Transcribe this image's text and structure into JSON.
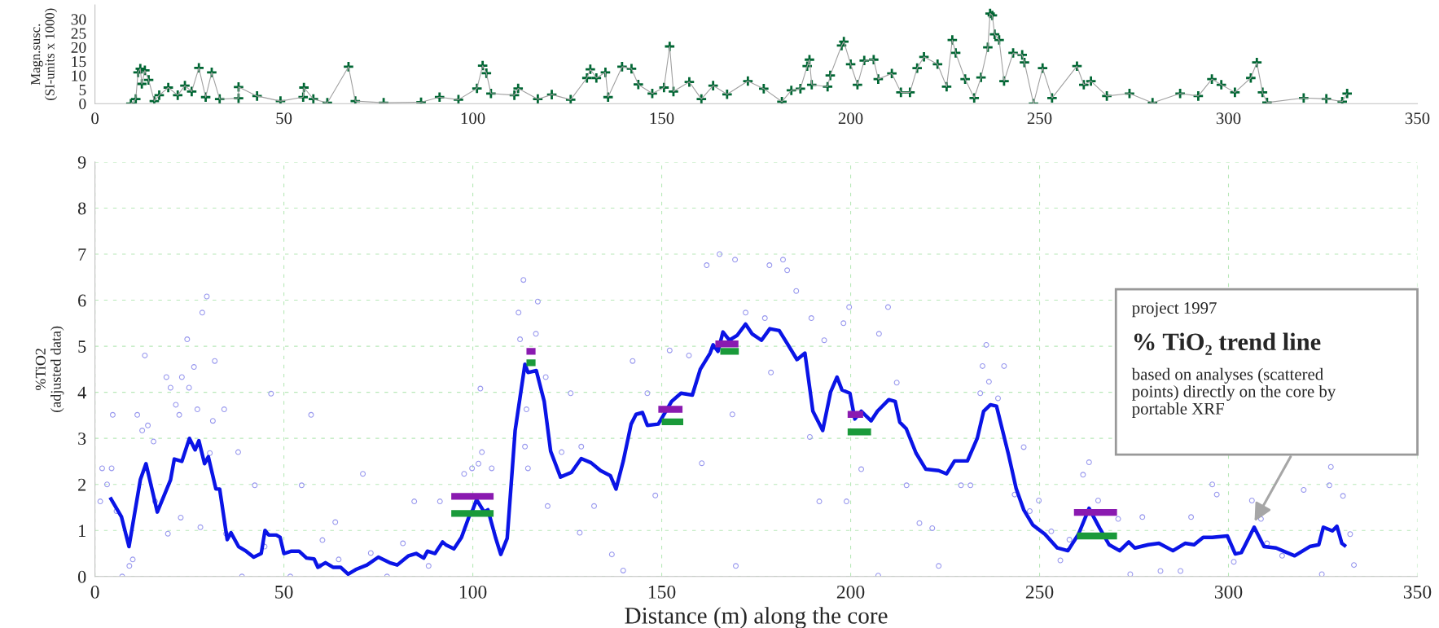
{
  "chart_data": [
    {
      "type": "scatter",
      "ylabel": "Magn.susc.\n(SI-units x 1000)",
      "xlim": [
        0,
        350
      ],
      "xticks": [
        0,
        50,
        100,
        150,
        200,
        250,
        300,
        350
      ],
      "ylim": [
        0,
        35
      ],
      "yticks": [
        0,
        5,
        10,
        15,
        20,
        25,
        30
      ],
      "grid": false,
      "series": [
        {
          "type": "line",
          "color": "#a0a0a0",
          "marker": "none",
          "x": [
            9.5,
            10.8,
            11.4,
            12,
            12.4,
            13.2,
            14.2,
            15.7,
            17,
            19.4,
            21.9,
            23.8,
            25.6,
            27.5,
            29.3,
            30.9,
            33,
            38,
            38,
            42.9,
            49.1,
            55.1,
            55.3,
            57.8,
            61.5,
            67.1,
            68.9,
            76.4,
            86.3,
            91.2,
            96.2,
            101.1,
            102.6,
            103.6,
            104.8,
            111,
            112,
            117.2,
            120.9,
            125.9,
            130.2,
            131.1,
            132.7,
            135.1,
            135.8,
            139.5,
            142,
            143.8,
            147.5,
            150.6,
            152.1,
            153.1,
            157.3,
            160.5,
            163.6,
            167.3,
            172.8,
            177,
            181.8,
            184.3,
            186.7,
            188.5,
            189.1,
            189.7,
            193.9,
            194.6,
            197.6,
            198.2,
            200,
            201.8,
            203.6,
            206.1,
            207.3,
            210.9,
            213.3,
            215.7,
            217.6,
            219.4,
            223,
            225.4,
            226.9,
            227.8,
            230.3,
            232.7,
            234.5,
            236.3,
            236.9,
            237.5,
            238.1,
            239.3,
            240.6,
            243,
            245.4,
            246,
            248.4,
            250.8,
            253.3,
            259.9,
            261.7,
            263.6,
            267.8,
            273.8,
            279.9,
            287.2,
            292,
            295.6,
            298.1,
            301.7,
            305.9,
            307.5,
            309,
            310.2,
            319.9,
            325.9,
            330.1,
            331.4
          ],
          "values": [
            0,
            1.6,
            11.1,
            12.4,
            7,
            11.8,
            8.4,
            0.9,
            3,
            5.7,
            3,
            6.4,
            4.3,
            12.7,
            2.3,
            11.1,
            1.6,
            1.9,
            5.9,
            2.7,
            0.9,
            2.3,
            5.7,
            1.6,
            0.3,
            13.1,
            0.9,
            0.3,
            0.5,
            2.3,
            1.4,
            5.4,
            13.5,
            10.8,
            3.6,
            3,
            5.4,
            1.6,
            3.2,
            1.4,
            9.1,
            12.2,
            9.1,
            11.1,
            2.3,
            13.1,
            12.4,
            6.8,
            3.6,
            5.7,
            20.3,
            4.3,
            7.7,
            1.6,
            6.4,
            3.3,
            8,
            5.3,
            0.7,
            4.7,
            5.3,
            13.3,
            15.6,
            6.7,
            6,
            10,
            20.6,
            22,
            14,
            6.7,
            15.3,
            15.6,
            8.7,
            10.7,
            4,
            4,
            12.6,
            16.6,
            14,
            6,
            22.6,
            18,
            8.7,
            2,
            9.3,
            20,
            32,
            31.3,
            24.6,
            22.6,
            8,
            18,
            17.3,
            14.6,
            0,
            12.6,
            2,
            13.3,
            6.7,
            8,
            2.7,
            3.6,
            0.3,
            3.6,
            2.7,
            8.7,
            6.7,
            4,
            9.1,
            14.6,
            4,
            0.4,
            2,
            1.7,
            0.7,
            3.6
          ]
        },
        {
          "color": "#006633",
          "marker": "cross",
          "x": [
            9.5,
            10.8,
            11.4,
            12,
            12.4,
            13.2,
            14.2,
            15.7,
            17,
            19.4,
            21.9,
            23.8,
            25.6,
            27.5,
            29.3,
            30.9,
            33,
            38,
            38,
            42.9,
            49.1,
            55.1,
            55.3,
            57.8,
            61.5,
            67.1,
            68.9,
            76.4,
            86.3,
            91.2,
            96.2,
            101.1,
            102.6,
            103.6,
            104.8,
            111,
            112,
            117.2,
            120.9,
            125.9,
            130.2,
            131.1,
            132.7,
            135.1,
            135.8,
            139.5,
            142,
            143.8,
            147.5,
            150.6,
            152.1,
            153.1,
            157.3,
            160.5,
            163.6,
            167.3,
            172.8,
            177,
            181.8,
            184.3,
            186.7,
            188.5,
            189.1,
            189.7,
            193.9,
            194.6,
            197.6,
            198.2,
            200,
            201.8,
            203.6,
            206.1,
            207.3,
            210.9,
            213.3,
            215.7,
            217.6,
            219.4,
            223,
            225.4,
            226.9,
            227.8,
            230.3,
            232.7,
            234.5,
            236.3,
            236.9,
            237.5,
            238.1,
            239.3,
            240.6,
            243,
            245.4,
            246,
            248.4,
            250.8,
            253.3,
            259.9,
            261.7,
            263.6,
            267.8,
            273.8,
            279.9,
            287.2,
            292,
            295.6,
            298.1,
            301.7,
            305.9,
            307.5,
            309,
            310.2,
            319.9,
            325.9,
            330.1,
            331.4
          ],
          "values": [
            0,
            1.6,
            11.1,
            12.4,
            7,
            11.8,
            8.4,
            0.9,
            3,
            5.7,
            3,
            6.4,
            4.3,
            12.7,
            2.3,
            11.1,
            1.6,
            1.9,
            5.9,
            2.7,
            0.9,
            2.3,
            5.7,
            1.6,
            0.3,
            13.1,
            0.9,
            0.3,
            0.5,
            2.3,
            1.4,
            5.4,
            13.5,
            10.8,
            3.6,
            3,
            5.4,
            1.6,
            3.2,
            1.4,
            9.1,
            12.2,
            9.1,
            11.1,
            2.3,
            13.1,
            12.4,
            6.8,
            3.6,
            5.7,
            20.3,
            4.3,
            7.7,
            1.6,
            6.4,
            3.3,
            8,
            5.3,
            0.7,
            4.7,
            5.3,
            13.3,
            15.6,
            6.7,
            6,
            10,
            20.6,
            22,
            14,
            6.7,
            15.3,
            15.6,
            8.7,
            10.7,
            4,
            4,
            12.6,
            16.6,
            14,
            6,
            22.6,
            18,
            8.7,
            2,
            9.3,
            20,
            32,
            31.3,
            24.6,
            22.6,
            8,
            18,
            17.3,
            14.6,
            0,
            12.6,
            2,
            13.3,
            6.7,
            8,
            2.7,
            3.6,
            0.3,
            3.6,
            2.7,
            8.7,
            6.7,
            4,
            9.1,
            14.6,
            4,
            0.4,
            2,
            1.7,
            0.7,
            3.6
          ]
        }
      ]
    },
    {
      "type": "scatter",
      "xlabel": "Distance (m) along the core",
      "ylabel": "%TiO2\n(adjusted data)",
      "xlim": [
        0,
        350
      ],
      "xticks": [
        0,
        50,
        100,
        150,
        200,
        250,
        300,
        350
      ],
      "ylim": [
        0,
        9
      ],
      "yticks": [
        0,
        1,
        2,
        3,
        4,
        5,
        6,
        7,
        8,
        9
      ],
      "grid": true,
      "annotations": [
        "project 1997",
        "% TiO₂ trend line",
        "based on analyses (scattered\npoints) directly on the core by\nportable XRF"
      ],
      "series": [
        {
          "color": "#9999ee",
          "marker": "circle",
          "x": [
            1.9,
            1.4,
            4.7,
            4.4,
            3.2,
            5.7,
            7.2,
            11.2,
            13.2,
            12.5,
            14,
            15.5,
            18.9,
            20,
            21.4,
            22.3,
            23,
            24.4,
            24.9,
            26.2,
            27.1,
            28.4,
            29.6,
            31.7,
            31.2,
            34.2,
            37.9,
            42.3,
            46.6,
            54.7,
            57.2,
            63.6,
            70.9,
            64.5,
            59.4,
            51.7,
            38.9,
            77.3,
            84.5,
            91.3,
            97.7,
            99.8,
            101.5,
            102,
            102.4,
            105,
            44.9,
            34.7,
            60.2,
            73,
            81.5,
            88.3,
            9.1,
            15.9,
            19.3,
            22.7,
            27.9,
            30.4,
            10,
            113.4,
            112.1,
            117.2,
            112.5,
            116.7,
            119.3,
            114.2,
            113.8,
            114.6,
            119.8,
            123.5,
            125.9,
            128.7,
            132.1,
            128.3,
            136.8,
            139.8,
            142.3,
            146.2,
            148.3,
            152.1,
            157.2,
            161.9,
            165.3,
            169.4,
            172.2,
            177.3,
            178.5,
            182.1,
            183.2,
            185.6,
            189.6,
            193,
            198.1,
            199.6,
            207.5,
            209.9,
            212.2,
            202.8,
            191.7,
            198.9,
            218.2,
            221.6,
            229.2,
            234.3,
            169.6,
            207.3,
            160.6,
            168.7,
            178.9,
            189.2,
            214.8,
            223.3,
            235.9,
            234.9,
            240.6,
            236.6,
            239,
            231.7,
            245.8,
            243.4,
            247.4,
            249.8,
            253.1,
            255.5,
            263.1,
            261.5,
            265.5,
            270.8,
            277.2,
            282,
            287.3,
            290.1,
            295.7,
            296.9,
            306.2,
            308.6,
            310.2,
            314.2,
            319.9,
            326.7,
            327.1,
            330.3,
            332.2,
            333.2,
            324.7,
            301.4,
            274,
            257.9
          ],
          "values": [
            2.35,
            1.63,
            3.51,
            2.35,
            2.0,
            1.42,
            0,
            3.51,
            4.8,
            3.17,
            3.28,
            2.93,
            4.33,
            4.1,
            3.73,
            3.51,
            4.33,
            5.15,
            4.1,
            4.55,
            3.63,
            5.73,
            6.08,
            4.68,
            3.38,
            3.63,
            2.7,
            1.98,
            3.97,
            1.98,
            3.51,
            1.18,
            2.23,
            0.37,
            0.23,
            0,
            0,
            0,
            1.63,
            1.63,
            2.23,
            2.35,
            2.45,
            4.08,
            2.7,
            2.35,
            0.65,
            0.93,
            0.79,
            0.51,
            0.72,
            0.23,
            0.23,
            1.63,
            0.93,
            1.28,
            1.07,
            2.68,
            0.37,
            6.44,
            5.73,
            5.97,
            5.15,
            5.27,
            4.33,
            3.63,
            2.82,
            2.35,
            1.53,
            2.7,
            3.98,
            2.82,
            1.53,
            0.95,
            0.48,
            0.13,
            4.68,
            3.98,
            1.76,
            4.91,
            4.8,
            6.76,
            7.0,
            6.88,
            5.73,
            5.61,
            6.76,
            6.88,
            6.65,
            6.2,
            5.61,
            5.13,
            5.5,
            5.85,
            5.27,
            5.85,
            4.21,
            2.33,
            1.63,
            1.63,
            1.16,
            1.05,
            1.98,
            3.98,
            0.23,
            0.02,
            2.46,
            3.52,
            4.43,
            3.03,
            1.98,
            0.23,
            5.03,
            4.57,
            4.57,
            4.23,
            3.87,
            1.98,
            2.81,
            1.78,
            1.42,
            1.65,
            0.98,
            0.35,
            2.48,
            2.21,
            1.65,
            1.25,
            1.29,
            0.12,
            0.12,
            1.29,
            2.0,
            1.78,
            1.65,
            1.25,
            0.72,
            0.45,
            1.88,
            1.98,
            2.38,
            1.75,
            0.92,
            0.25,
            0.05,
            0.32,
            0.05,
            0.8
          ]
        },
        {
          "type": "line",
          "color": "#0a14e6",
          "marker": "none",
          "x": [
            4,
            7,
            9,
            12,
            13.5,
            16.5,
            20,
            21,
            23,
            25,
            26.5,
            27.5,
            29,
            30,
            32,
            33,
            35,
            36,
            38,
            40,
            42,
            44,
            45,
            46,
            48,
            49,
            50,
            52,
            54,
            56,
            58,
            59,
            61,
            63,
            65,
            67,
            69,
            72,
            75,
            78,
            80,
            83,
            85,
            87,
            88,
            90,
            92,
            93,
            95,
            97,
            99,
            100,
            101,
            103,
            104,
            106,
            107.4,
            109.1,
            111.2,
            113.8,
            114.6,
            116.8,
            118.9,
            120.6,
            123.2,
            126.1,
            128.7,
            131.3,
            133.8,
            136.4,
            137.9,
            139.8,
            141.9,
            143.2,
            144.9,
            146.2,
            149.1,
            152.6,
            155.1,
            158.1,
            160.2,
            162.8,
            163.6,
            164.9,
            166.2,
            167.9,
            170,
            172.2,
            173.9,
            176.4,
            178.6,
            181.1,
            183.2,
            185.8,
            187.9,
            190,
            192.6,
            194.7,
            196.4,
            197.7,
            199.8,
            201.1,
            202.8,
            205.4,
            207.1,
            210.1,
            211.8,
            213,
            214.7,
            217.3,
            219.9,
            223.3,
            225.4,
            227.5,
            230.9,
            233.5,
            235.2,
            237,
            238.6,
            240.2,
            241.8,
            243.8,
            245.8,
            248.2,
            251.4,
            254.7,
            257.5,
            260.3,
            263.1,
            265.9,
            268.4,
            271.2,
            273.6,
            275.2,
            278.8,
            281.6,
            285.3,
            288.5,
            290.9,
            293.3,
            295.7,
            299.7,
            301.8,
            303.4,
            306.8,
            309.4,
            312.6,
            317.5,
            321.5,
            323.9,
            325.1,
            327.5,
            328.7,
            330,
            331.1
          ],
          "values": [
            1.72,
            1.3,
            0.65,
            2.1,
            2.45,
            1.4,
            2.1,
            2.55,
            2.5,
            3.0,
            2.75,
            2.95,
            2.45,
            2.6,
            1.9,
            1.9,
            0.8,
            0.95,
            0.65,
            0.55,
            0.42,
            0.5,
            1.0,
            0.9,
            0.9,
            0.85,
            0.5,
            0.55,
            0.55,
            0.4,
            0.38,
            0.2,
            0.3,
            0.2,
            0.2,
            0.05,
            0.15,
            0.25,
            0.42,
            0.3,
            0.25,
            0.45,
            0.5,
            0.4,
            0.55,
            0.5,
            0.75,
            0.68,
            0.6,
            0.85,
            1.3,
            1.45,
            1.67,
            1.4,
            1.45,
            0.85,
            0.48,
            0.83,
            3.17,
            4.61,
            4.43,
            4.47,
            3.8,
            2.72,
            2.16,
            2.26,
            2.56,
            2.47,
            2.3,
            2.19,
            1.9,
            2.5,
            3.31,
            3.52,
            3.56,
            3.28,
            3.31,
            3.8,
            3.98,
            3.94,
            4.5,
            4.85,
            5.03,
            4.89,
            5.31,
            5.13,
            5.24,
            5.48,
            5.27,
            5.13,
            5.38,
            5.34,
            5.06,
            4.71,
            4.85,
            3.59,
            3.17,
            4.01,
            4.33,
            4.05,
            3.98,
            3.42,
            3.59,
            3.38,
            3.59,
            3.84,
            3.8,
            3.35,
            3.21,
            2.68,
            2.33,
            2.3,
            2.23,
            2.51,
            2.51,
            3.0,
            3.59,
            3.73,
            3.7,
            3.17,
            2.64,
            1.91,
            1.45,
            1.12,
            0.92,
            0.62,
            0.56,
            0.92,
            1.48,
            1.05,
            0.69,
            0.56,
            0.75,
            0.62,
            0.69,
            0.72,
            0.56,
            0.72,
            0.69,
            0.85,
            0.85,
            0.88,
            0.49,
            0.52,
            1.07,
            0.65,
            0.62,
            0.45,
            0.65,
            0.69,
            1.07,
            0.99,
            1.09,
            0.72,
            0.65
          ]
        },
        {
          "type": "line",
          "color": "#8a1ab0",
          "marker": "none",
          "x": [
            94.3,
            105.5,
            110,
            114.2,
            116.6,
            130,
            149.1,
            155.5,
            160,
            164.2,
            170.3,
            185,
            199.2,
            203.3,
            230,
            259.1,
            270.5
          ],
          "values": [
            1.74,
            1.74,
            null,
            4.89,
            4.89,
            null,
            3.63,
            3.63,
            null,
            5.05,
            5.05,
            null,
            3.52,
            3.52,
            null,
            1.39,
            1.39
          ]
        },
        {
          "type": "line",
          "color": "#1a9a3a",
          "marker": "none",
          "x": [
            94.3,
            105.5,
            110,
            114.2,
            116.6,
            130,
            150,
            155.7,
            160,
            165.5,
            170.4,
            185,
            199.2,
            205.4,
            230,
            259.9,
            270.5
          ],
          "values": [
            1.37,
            1.37,
            null,
            4.64,
            4.64,
            null,
            3.36,
            3.36,
            null,
            4.89,
            4.89,
            null,
            3.14,
            3.14,
            null,
            0.88,
            0.88
          ]
        }
      ]
    }
  ]
}
